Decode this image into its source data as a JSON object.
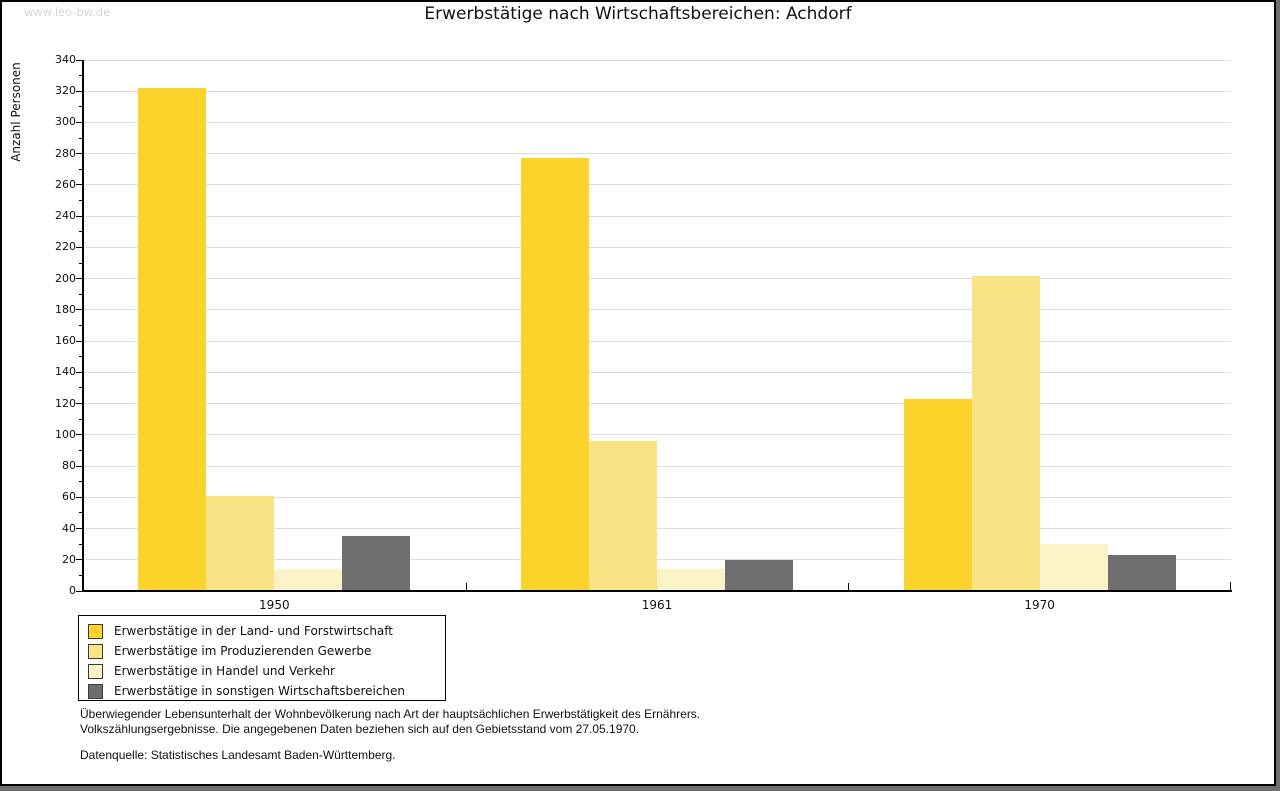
{
  "watermark": "www.leo-bw.de",
  "title": "Erwerbstätige nach Wirtschaftsbereichen: Achdorf",
  "footnote": {
    "line1": "Überwiegender Lebensunterhalt der Wohnbevölkerung nach Art der hauptsächlichen Erwerbstätigkeit des Ernährers.",
    "line2": "Volkszählungsergebnisse. Die angegebenen Daten beziehen sich auf den Gebietsstand vom 27.05.1970.",
    "source": "Datenquelle: Statistisches Landesamt Baden-Württemberg."
  },
  "chart_data": {
    "type": "bar",
    "title": "Erwerbstätige nach Wirtschaftsbereichen: Achdorf",
    "xlabel": "",
    "ylabel": "Anzahl Personen",
    "categories": [
      "1950",
      "1961",
      "1970"
    ],
    "series": [
      {
        "name": "Erwerbstätige in der Land- und Forstwirtschaft",
        "color": "#FCD32B",
        "values": [
          322,
          277,
          123
        ]
      },
      {
        "name": "Erwerbstätige im Produzierenden Gewerbe",
        "color": "#FAE385",
        "values": [
          61,
          96,
          202
        ]
      },
      {
        "name": "Erwerbstätige in Handel und Verkehr",
        "color": "#FBF2C6",
        "values": [
          14,
          14,
          30
        ]
      },
      {
        "name": "Erwerbstätige in sonstigen Wirtschaftsbereichen",
        "color": "#6E6E6E",
        "values": [
          35,
          20,
          23
        ]
      }
    ],
    "ylim": [
      0,
      340
    ],
    "ytick_step": 20,
    "minor_tick_step": 10,
    "grid": true,
    "legend_position": "bottom-left"
  },
  "colors": {
    "grid": "#DDDDDD",
    "axis": "#000000",
    "watermark": "#D6D6D6",
    "frame_shadow": "#6E6E6E",
    "swatch_border": "#3A3A3A"
  }
}
